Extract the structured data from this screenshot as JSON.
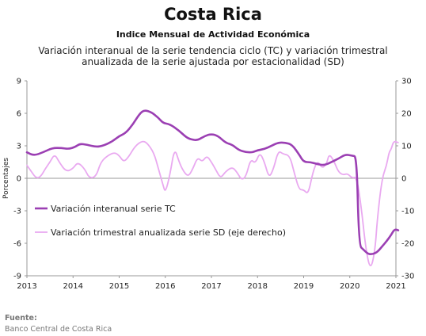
{
  "header": {
    "title": "Costa Rica",
    "subtitle": "Indice Mensual de  Actividad Económica",
    "description": "Variación interanual de la serie tendencia ciclo (TC) y variación trimestral\nanualizada de la serie ajustada por estacionalidad (SD)"
  },
  "footer": {
    "label": "Fuente:",
    "source": "Banco Central de Costa Rica"
  },
  "colors": {
    "tc": "#9b3fb3",
    "sd": "#e9a9f0",
    "axis": "#999999"
  },
  "chart_data": {
    "type": "line",
    "ylabel": "Porcentajes",
    "x_ticks": [
      "2013",
      "2014",
      "2015",
      "2016",
      "2017",
      "2018",
      "2019",
      "2020",
      "2021"
    ],
    "y_left_ticks": [
      "-9",
      "-6",
      "-3",
      "0",
      "3",
      "6",
      "9"
    ],
    "y_right_ticks": [
      "-30",
      "-20",
      "-10",
      "0",
      "10",
      "20",
      "30"
    ],
    "ylim_left": [
      -9,
      9
    ],
    "ylim_right": [
      -30,
      30
    ],
    "legend": [
      "Variación interanual serie TC",
      "Variación trimestral anualizada serie SD (eje derecho)"
    ],
    "series": [
      {
        "name": "Variación interanual serie TC",
        "axis": "left",
        "points": [
          [
            2013.0,
            2.4
          ],
          [
            2013.15,
            2.1
          ],
          [
            2013.35,
            2.4
          ],
          [
            2013.55,
            2.8
          ],
          [
            2013.75,
            2.8
          ],
          [
            2013.9,
            2.7
          ],
          [
            2014.05,
            2.9
          ],
          [
            2014.15,
            3.2
          ],
          [
            2014.3,
            3.1
          ],
          [
            2014.5,
            2.9
          ],
          [
            2014.65,
            3.0
          ],
          [
            2014.85,
            3.4
          ],
          [
            2015.0,
            3.9
          ],
          [
            2015.15,
            4.2
          ],
          [
            2015.3,
            5.0
          ],
          [
            2015.45,
            6.0
          ],
          [
            2015.55,
            6.3
          ],
          [
            2015.7,
            6.1
          ],
          [
            2015.85,
            5.6
          ],
          [
            2015.95,
            5.1
          ],
          [
            2016.1,
            5.0
          ],
          [
            2016.3,
            4.4
          ],
          [
            2016.45,
            3.8
          ],
          [
            2016.55,
            3.6
          ],
          [
            2016.7,
            3.5
          ],
          [
            2016.85,
            3.9
          ],
          [
            2017.0,
            4.1
          ],
          [
            2017.15,
            3.9
          ],
          [
            2017.3,
            3.3
          ],
          [
            2017.45,
            3.1
          ],
          [
            2017.6,
            2.6
          ],
          [
            2017.75,
            2.4
          ],
          [
            2017.9,
            2.4
          ],
          [
            2018.0,
            2.6
          ],
          [
            2018.15,
            2.7
          ],
          [
            2018.3,
            3.0
          ],
          [
            2018.45,
            3.3
          ],
          [
            2018.6,
            3.3
          ],
          [
            2018.75,
            3.1
          ],
          [
            2018.9,
            2.2
          ],
          [
            2019.0,
            1.5
          ],
          [
            2019.15,
            1.5
          ],
          [
            2019.3,
            1.3
          ],
          [
            2019.45,
            1.2
          ],
          [
            2019.6,
            1.5
          ],
          [
            2019.75,
            1.8
          ],
          [
            2019.9,
            2.2
          ],
          [
            2020.05,
            2.1
          ],
          [
            2020.15,
            2.0
          ],
          [
            2020.2,
            -6.2
          ],
          [
            2020.3,
            -6.6
          ],
          [
            2020.4,
            -7.0
          ],
          [
            2020.5,
            -7.0
          ],
          [
            2020.6,
            -6.8
          ],
          [
            2020.7,
            -6.3
          ],
          [
            2020.8,
            -5.8
          ],
          [
            2020.9,
            -5.2
          ],
          [
            2020.97,
            -4.7
          ],
          [
            2021.05,
            -4.8
          ]
        ]
      },
      {
        "name": "Variación trimestral anualizada serie SD (eje derecho)",
        "axis": "right",
        "points": [
          [
            2013.0,
            4.0
          ],
          [
            2013.1,
            2.0
          ],
          [
            2013.2,
            0.0
          ],
          [
            2013.3,
            0.5
          ],
          [
            2013.4,
            3.0
          ],
          [
            2013.5,
            5.0
          ],
          [
            2013.6,
            7.5
          ],
          [
            2013.7,
            5.0
          ],
          [
            2013.85,
            2.0
          ],
          [
            2014.0,
            3.0
          ],
          [
            2014.1,
            5.0
          ],
          [
            2014.25,
            3.0
          ],
          [
            2014.35,
            0.0
          ],
          [
            2014.5,
            0.5
          ],
          [
            2014.6,
            5.0
          ],
          [
            2014.75,
            7.0
          ],
          [
            2014.9,
            8.0
          ],
          [
            2015.0,
            7.0
          ],
          [
            2015.1,
            5.0
          ],
          [
            2015.2,
            6.5
          ],
          [
            2015.35,
            10.0
          ],
          [
            2015.5,
            11.5
          ],
          [
            2015.6,
            11.0
          ],
          [
            2015.75,
            8.0
          ],
          [
            2015.85,
            3.0
          ],
          [
            2015.95,
            -2.0
          ],
          [
            2016.0,
            -4.5
          ],
          [
            2016.1,
            1.0
          ],
          [
            2016.2,
            9.5
          ],
          [
            2016.3,
            5.0
          ],
          [
            2016.4,
            2.0
          ],
          [
            2016.5,
            0.5
          ],
          [
            2016.6,
            3.0
          ],
          [
            2016.7,
            6.5
          ],
          [
            2016.8,
            5.0
          ],
          [
            2016.9,
            7.0
          ],
          [
            2017.0,
            5.0
          ],
          [
            2017.1,
            2.5
          ],
          [
            2017.2,
            0.0
          ],
          [
            2017.3,
            2.0
          ],
          [
            2017.45,
            3.5
          ],
          [
            2017.55,
            2.0
          ],
          [
            2017.65,
            -0.5
          ],
          [
            2017.75,
            0.5
          ],
          [
            2017.85,
            6.0
          ],
          [
            2017.95,
            4.5
          ],
          [
            2018.05,
            8.0
          ],
          [
            2018.15,
            5.0
          ],
          [
            2018.25,
            0.0
          ],
          [
            2018.35,
            3.0
          ],
          [
            2018.45,
            8.5
          ],
          [
            2018.55,
            7.5
          ],
          [
            2018.7,
            7.0
          ],
          [
            2018.8,
            1.5
          ],
          [
            2018.9,
            -3.5
          ],
          [
            2019.0,
            -3.5
          ],
          [
            2019.1,
            -5.0
          ],
          [
            2019.2,
            2.0
          ],
          [
            2019.3,
            5.5
          ],
          [
            2019.4,
            3.0
          ],
          [
            2019.5,
            4.5
          ],
          [
            2019.55,
            7.5
          ],
          [
            2019.65,
            5.5
          ],
          [
            2019.75,
            2.0
          ],
          [
            2019.85,
            1.0
          ],
          [
            2019.95,
            1.5
          ],
          [
            2020.05,
            0.0
          ],
          [
            2020.15,
            0.5
          ],
          [
            2020.25,
            -9.0
          ],
          [
            2020.35,
            -22.0
          ],
          [
            2020.45,
            -28.5
          ],
          [
            2020.55,
            -22.0
          ],
          [
            2020.6,
            -12.0
          ],
          [
            2020.7,
            0.0
          ],
          [
            2020.8,
            4.0
          ],
          [
            2020.85,
            8.0
          ],
          [
            2020.9,
            9.0
          ],
          [
            2020.95,
            11.5
          ],
          [
            2021.05,
            11.0
          ]
        ]
      }
    ]
  }
}
